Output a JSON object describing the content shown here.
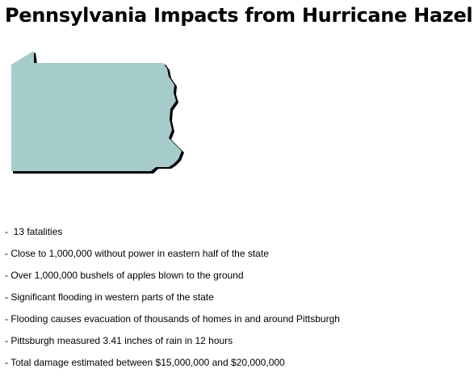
{
  "header": {
    "title": "Pennsylvania Impacts from Hurricane Hazel"
  },
  "items": [
    "-  13 fatalities",
    "- Close to 1,000,000 without power in eastern half of the state",
    "- Over 1,000,000 bushels of apples blown to the ground",
    "- Significant flooding in western parts of the state",
    "- Flooding causes evacuation of thousands of homes in and around Pittsburgh",
    "- Pittsburgh measured 3.41 inches of rain in 12 hours",
    "- Total damage estimated between $15,000,000 and $20,000,000"
  ]
}
